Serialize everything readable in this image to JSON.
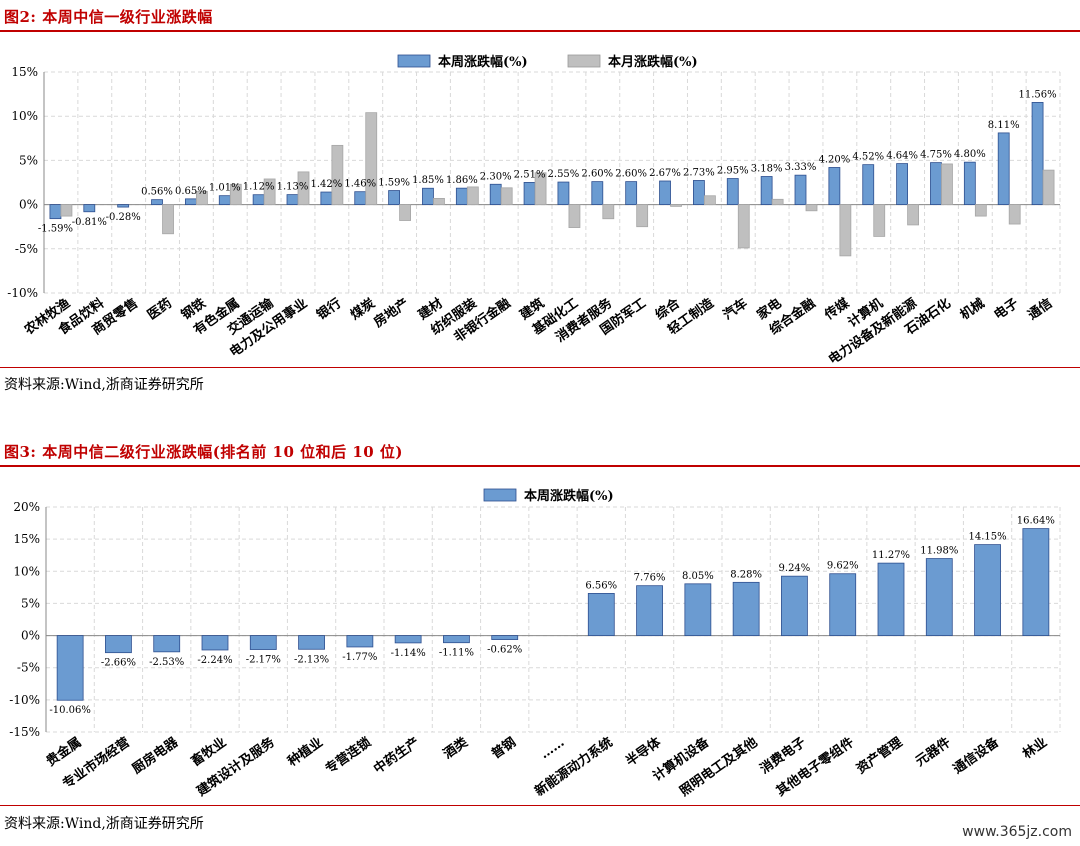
{
  "figure2": {
    "title": "图2:  本周中信一级行业涨跌幅",
    "source": "资料来源:Wind,浙商证券研究所"
  },
  "figure3": {
    "title": "图3:  本周中信二级行业涨跌幅(排名前 10 位和后 10 位)",
    "source": "资料来源:Wind,浙商证券研究所"
  },
  "watermark": "www.365jz.com",
  "colors": {
    "accent": "#c00000",
    "blue": "#6b9bd1",
    "blue_edge": "#2e4f8f",
    "gray": "#bfbfbf"
  },
  "chart_data": [
    {
      "type": "bar",
      "title": "本周中信一级行业涨跌幅",
      "categories": [
        "农林牧渔",
        "食品饮料",
        "商贸零售",
        "医药",
        "钢铁",
        "有色金属",
        "交通运输",
        "电力及公用事业",
        "银行",
        "煤炭",
        "房地产",
        "建材",
        "纺织服装",
        "非银行金融",
        "建筑",
        "基础化工",
        "消费者服务",
        "国防军工",
        "综合",
        "轻工制造",
        "汽车",
        "家电",
        "综合金融",
        "传媒",
        "计算机",
        "电力设备及新能源",
        "石油石化",
        "机械",
        "电子",
        "通信"
      ],
      "series": [
        {
          "name": "本周涨跌幅(%)",
          "values": [
            -1.59,
            -0.81,
            -0.28,
            0.56,
            0.65,
            1.01,
            1.12,
            1.13,
            1.42,
            1.46,
            1.59,
            1.85,
            1.86,
            2.3,
            2.51,
            2.55,
            2.6,
            2.6,
            2.67,
            2.73,
            2.95,
            3.18,
            3.33,
            4.2,
            4.52,
            4.64,
            4.75,
            4.8,
            8.11,
            11.56
          ]
        },
        {
          "name": "本月涨跌幅(%)",
          "values": [
            -1.3,
            0.0,
            0.0,
            -3.3,
            1.5,
            2.3,
            2.9,
            3.7,
            6.7,
            10.4,
            -1.8,
            0.7,
            2.0,
            1.9,
            3.6,
            -2.6,
            -1.6,
            -2.5,
            -0.2,
            1.0,
            -4.9,
            0.6,
            -0.7,
            -5.8,
            -3.6,
            -2.3,
            4.6,
            -1.3,
            -2.2,
            3.9
          ]
        }
      ],
      "data_labels": [
        "-1.59%",
        "-0.81%",
        "-0.28%",
        "0.56%",
        "0.65%",
        "1.01%",
        "1.12%",
        "1.13%",
        "1.42%",
        "1.46%",
        "1.59%",
        "1.85%",
        "1.86%",
        "2.30%",
        "2.51%",
        "2.55%",
        "2.60%",
        "2.60%",
        "2.67%",
        "2.73%",
        "2.95%",
        "3.18%",
        "3.33%",
        "4.20%",
        "4.52%",
        "4.64%",
        "4.75%",
        "4.80%",
        "8.11%",
        "11.56%"
      ],
      "ylim": [
        -10,
        15
      ],
      "yticks": [
        "15%",
        "10%",
        "5%",
        "0%",
        "-5%",
        "-10%"
      ],
      "ytick_values": [
        15,
        10,
        5,
        0,
        -5,
        -10
      ],
      "legend": "top-center",
      "grid": true
    },
    {
      "type": "bar",
      "title": "本周中信二级行业涨跌幅(排名前 10 位和后 10 位)",
      "categories": [
        "贵金属",
        "专业市场经营",
        "厨房电器",
        "畜牧业",
        "建筑设计及服务",
        "种植业",
        "专营连锁",
        "中药生产",
        "酒类",
        "普钢",
        "……",
        "新能源动力系统",
        "半导体",
        "计算机设备",
        "照明电工及其他",
        "消费电子",
        "其他电子零组件",
        "资产管理",
        "元器件",
        "通信设备",
        "林业"
      ],
      "series": [
        {
          "name": "本周涨跌幅(%)",
          "values": [
            -10.06,
            -2.66,
            -2.53,
            -2.24,
            -2.17,
            -2.13,
            -1.77,
            -1.14,
            -1.11,
            -0.62,
            null,
            6.56,
            7.76,
            8.05,
            8.28,
            9.24,
            9.62,
            11.27,
            11.98,
            14.15,
            16.64
          ]
        }
      ],
      "data_labels": [
        "-10.06%",
        "-2.66%",
        "-2.53%",
        "-2.24%",
        "-2.17%",
        "-2.13%",
        "-1.77%",
        "-1.14%",
        "-1.11%",
        "-0.62%",
        "",
        "6.56%",
        "7.76%",
        "8.05%",
        "8.28%",
        "9.24%",
        "9.62%",
        "11.27%",
        "11.98%",
        "14.15%",
        "16.64%"
      ],
      "ylim": [
        -15,
        20
      ],
      "yticks": [
        "20%",
        "15%",
        "10%",
        "5%",
        "0%",
        "-5%",
        "-10%",
        "-15%"
      ],
      "ytick_values": [
        20,
        15,
        10,
        5,
        0,
        -5,
        -10,
        -15
      ],
      "legend": "top-center",
      "grid": true
    }
  ]
}
